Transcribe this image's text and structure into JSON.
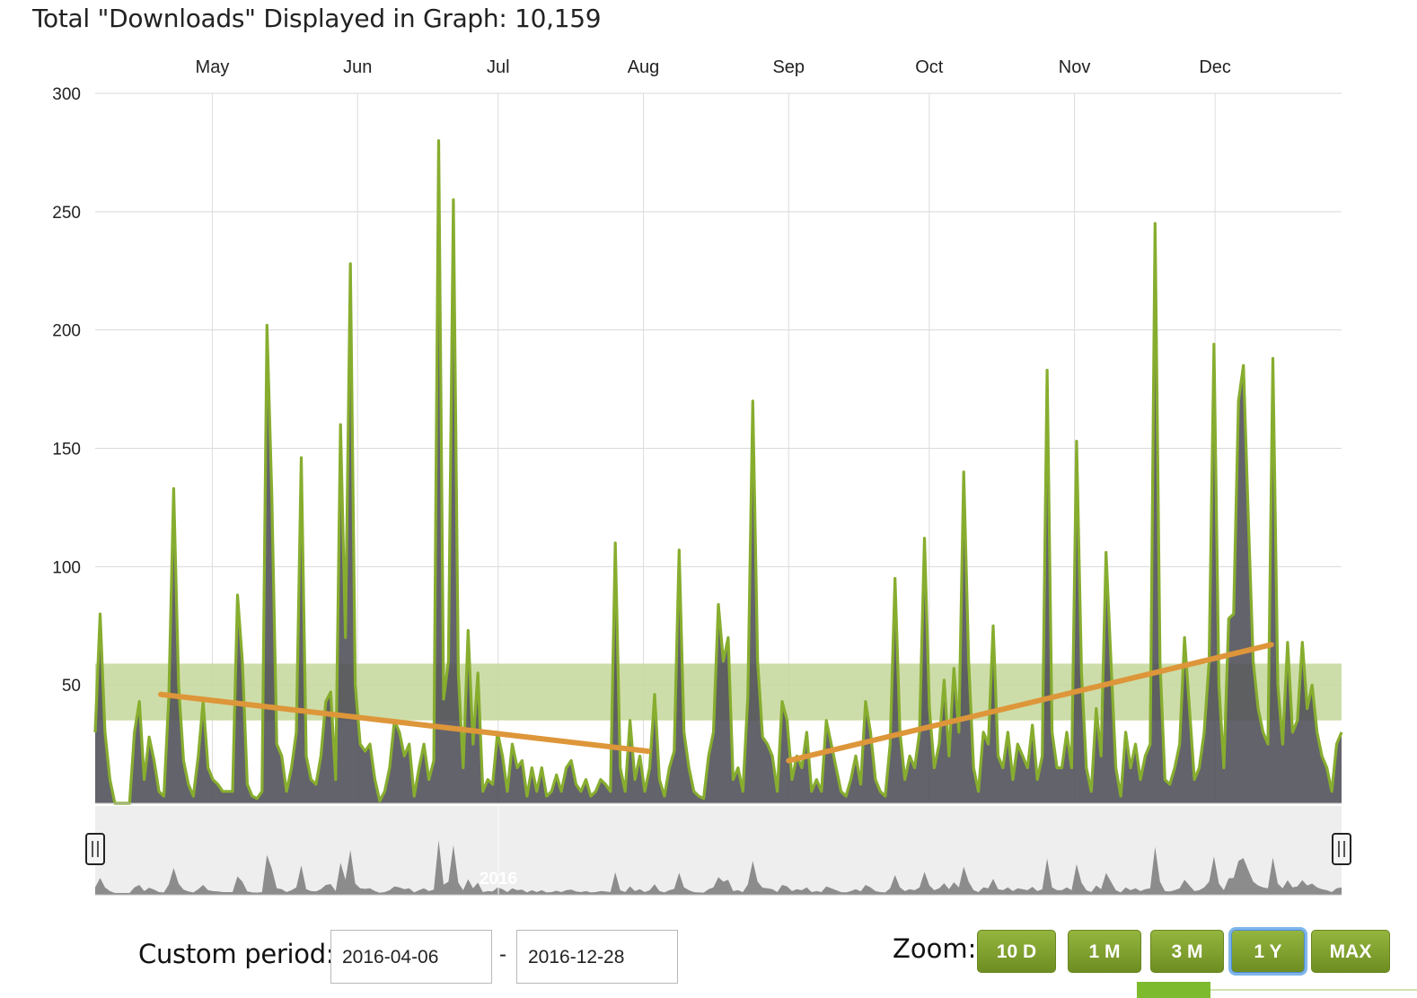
{
  "header": {
    "title": "Total \"Downloads\" Displayed in Graph: 10,159"
  },
  "colors": {
    "area_fill": "#4d4d57",
    "area_line": "#87ad2f",
    "avg_band": "#c4d79a",
    "trend_line": "#dd9639",
    "navigator_fill": "#8c8c8c"
  },
  "chart_data": {
    "type": "area",
    "title": "Total \"Downloads\" Displayed in Graph: 10,159",
    "x_range": [
      "2016-04-06",
      "2016-12-28"
    ],
    "month_labels": [
      "May",
      "Jun",
      "Jul",
      "Aug",
      "Sep",
      "Oct",
      "Nov",
      "Dec"
    ],
    "month_dates": [
      "2016-05-01",
      "2016-06-01",
      "2016-07-01",
      "2016-08-01",
      "2016-09-01",
      "2016-10-01",
      "2016-11-01",
      "2016-12-01"
    ],
    "y_ticks": [
      50,
      100,
      150,
      200,
      250,
      300
    ],
    "ylim": [
      0,
      300
    ],
    "grid": true,
    "average_band": [
      35,
      59
    ],
    "trend_lines": [
      {
        "from": {
          "x": "2016-04-20",
          "y": 46
        },
        "to": {
          "x": "2016-08-02",
          "y": 22
        }
      },
      {
        "from": {
          "x": "2016-09-01",
          "y": 18
        },
        "to": {
          "x": "2016-12-13",
          "y": 67
        }
      }
    ],
    "navigator_label": "2016",
    "series": [
      {
        "values": [
          [
            0,
            30
          ],
          [
            1,
            80
          ],
          [
            2,
            30
          ],
          [
            3,
            10
          ],
          [
            4,
            0
          ],
          [
            5,
            0
          ],
          [
            6,
            0
          ],
          [
            7,
            0
          ],
          [
            8,
            30
          ],
          [
            9,
            43
          ],
          [
            10,
            10
          ],
          [
            11,
            28
          ],
          [
            12,
            18
          ],
          [
            13,
            5
          ],
          [
            14,
            3
          ],
          [
            15,
            45
          ],
          [
            16,
            133
          ],
          [
            17,
            50
          ],
          [
            18,
            18
          ],
          [
            19,
            8
          ],
          [
            20,
            3
          ],
          [
            21,
            20
          ],
          [
            22,
            43
          ],
          [
            23,
            15
          ],
          [
            24,
            10
          ],
          [
            25,
            8
          ],
          [
            26,
            5
          ],
          [
            27,
            5
          ],
          [
            28,
            5
          ],
          [
            29,
            88
          ],
          [
            30,
            60
          ],
          [
            31,
            8
          ],
          [
            32,
            3
          ],
          [
            33,
            2
          ],
          [
            34,
            5
          ],
          [
            35,
            202
          ],
          [
            36,
            130
          ],
          [
            37,
            25
          ],
          [
            38,
            20
          ],
          [
            39,
            5
          ],
          [
            40,
            15
          ],
          [
            41,
            30
          ],
          [
            42,
            146
          ],
          [
            43,
            20
          ],
          [
            44,
            10
          ],
          [
            45,
            8
          ],
          [
            46,
            20
          ],
          [
            47,
            43
          ],
          [
            48,
            47
          ],
          [
            49,
            10
          ],
          [
            50,
            160
          ],
          [
            51,
            70
          ],
          [
            52,
            228
          ],
          [
            53,
            50
          ],
          [
            54,
            25
          ],
          [
            55,
            22
          ],
          [
            56,
            25
          ],
          [
            57,
            10
          ],
          [
            58,
            1
          ],
          [
            59,
            5
          ],
          [
            60,
            15
          ],
          [
            61,
            35
          ],
          [
            62,
            30
          ],
          [
            63,
            20
          ],
          [
            64,
            25
          ],
          [
            65,
            3
          ],
          [
            66,
            15
          ],
          [
            67,
            25
          ],
          [
            68,
            10
          ],
          [
            69,
            18
          ],
          [
            70,
            280
          ],
          [
            71,
            44
          ],
          [
            72,
            60
          ],
          [
            73,
            255
          ],
          [
            74,
            55
          ],
          [
            75,
            15
          ],
          [
            76,
            73
          ],
          [
            77,
            25
          ],
          [
            78,
            55
          ],
          [
            79,
            5
          ],
          [
            80,
            10
          ],
          [
            81,
            8
          ],
          [
            82,
            30
          ],
          [
            83,
            20
          ],
          [
            84,
            5
          ],
          [
            85,
            25
          ],
          [
            86,
            15
          ],
          [
            87,
            18
          ],
          [
            88,
            3
          ],
          [
            89,
            15
          ],
          [
            90,
            5
          ],
          [
            91,
            15
          ],
          [
            92,
            3
          ],
          [
            93,
            5
          ],
          [
            94,
            12
          ],
          [
            95,
            5
          ],
          [
            96,
            15
          ],
          [
            97,
            18
          ],
          [
            98,
            8
          ],
          [
            99,
            5
          ],
          [
            100,
            10
          ],
          [
            101,
            3
          ],
          [
            102,
            5
          ],
          [
            103,
            10
          ],
          [
            104,
            8
          ],
          [
            105,
            5
          ],
          [
            106,
            110
          ],
          [
            107,
            15
          ],
          [
            108,
            5
          ],
          [
            109,
            35
          ],
          [
            110,
            10
          ],
          [
            111,
            20
          ],
          [
            112,
            5
          ],
          [
            113,
            15
          ],
          [
            114,
            46
          ],
          [
            115,
            10
          ],
          [
            116,
            3
          ],
          [
            117,
            15
          ],
          [
            118,
            22
          ],
          [
            119,
            107
          ],
          [
            120,
            30
          ],
          [
            121,
            15
          ],
          [
            122,
            5
          ],
          [
            123,
            3
          ],
          [
            124,
            2
          ],
          [
            125,
            20
          ],
          [
            126,
            30
          ],
          [
            127,
            84
          ],
          [
            128,
            60
          ],
          [
            129,
            70
          ],
          [
            130,
            10
          ],
          [
            131,
            15
          ],
          [
            132,
            5
          ],
          [
            133,
            45
          ],
          [
            134,
            170
          ],
          [
            135,
            60
          ],
          [
            136,
            28
          ],
          [
            137,
            25
          ],
          [
            138,
            20
          ],
          [
            139,
            5
          ],
          [
            140,
            43
          ],
          [
            141,
            35
          ],
          [
            142,
            10
          ],
          [
            143,
            20
          ],
          [
            144,
            15
          ],
          [
            145,
            30
          ],
          [
            146,
            5
          ],
          [
            147,
            10
          ],
          [
            148,
            5
          ],
          [
            149,
            35
          ],
          [
            150,
            25
          ],
          [
            151,
            15
          ],
          [
            152,
            5
          ],
          [
            153,
            3
          ],
          [
            154,
            10
          ],
          [
            155,
            20
          ],
          [
            156,
            8
          ],
          [
            157,
            43
          ],
          [
            158,
            30
          ],
          [
            159,
            10
          ],
          [
            160,
            5
          ],
          [
            161,
            3
          ],
          [
            162,
            25
          ],
          [
            163,
            95
          ],
          [
            164,
            30
          ],
          [
            165,
            10
          ],
          [
            166,
            20
          ],
          [
            167,
            15
          ],
          [
            168,
            30
          ],
          [
            169,
            112
          ],
          [
            170,
            40
          ],
          [
            171,
            15
          ],
          [
            172,
            25
          ],
          [
            173,
            52
          ],
          [
            174,
            20
          ],
          [
            175,
            57
          ],
          [
            176,
            30
          ],
          [
            177,
            140
          ],
          [
            178,
            60
          ],
          [
            179,
            15
          ],
          [
            180,
            5
          ],
          [
            181,
            30
          ],
          [
            182,
            25
          ],
          [
            183,
            75
          ],
          [
            184,
            20
          ],
          [
            185,
            15
          ],
          [
            186,
            30
          ],
          [
            187,
            10
          ],
          [
            188,
            25
          ],
          [
            189,
            20
          ],
          [
            190,
            15
          ],
          [
            191,
            33
          ],
          [
            192,
            10
          ],
          [
            193,
            20
          ],
          [
            194,
            183
          ],
          [
            195,
            30
          ],
          [
            196,
            15
          ],
          [
            197,
            15
          ],
          [
            198,
            30
          ],
          [
            199,
            15
          ],
          [
            200,
            153
          ],
          [
            201,
            55
          ],
          [
            202,
            15
          ],
          [
            203,
            5
          ],
          [
            204,
            40
          ],
          [
            205,
            20
          ],
          [
            206,
            106
          ],
          [
            207,
            60
          ],
          [
            208,
            15
          ],
          [
            209,
            3
          ],
          [
            210,
            30
          ],
          [
            211,
            15
          ],
          [
            212,
            25
          ],
          [
            213,
            10
          ],
          [
            214,
            20
          ],
          [
            215,
            25
          ],
          [
            216,
            245
          ],
          [
            217,
            60
          ],
          [
            218,
            10
          ],
          [
            219,
            8
          ],
          [
            220,
            15
          ],
          [
            221,
            25
          ],
          [
            222,
            70
          ],
          [
            223,
            40
          ],
          [
            224,
            10
          ],
          [
            225,
            15
          ],
          [
            226,
            30
          ],
          [
            227,
            60
          ],
          [
            228,
            194
          ],
          [
            229,
            50
          ],
          [
            230,
            15
          ],
          [
            231,
            78
          ],
          [
            232,
            80
          ],
          [
            233,
            170
          ],
          [
            234,
            185
          ],
          [
            235,
            120
          ],
          [
            236,
            60
          ],
          [
            237,
            40
          ],
          [
            238,
            30
          ],
          [
            239,
            25
          ],
          [
            240,
            188
          ],
          [
            241,
            50
          ],
          [
            242,
            25
          ],
          [
            243,
            68
          ],
          [
            244,
            30
          ],
          [
            245,
            35
          ],
          [
            246,
            68
          ],
          [
            247,
            40
          ],
          [
            248,
            50
          ],
          [
            249,
            30
          ],
          [
            250,
            20
          ],
          [
            251,
            15
          ],
          [
            252,
            5
          ],
          [
            253,
            25
          ],
          [
            254,
            30
          ]
        ]
      }
    ]
  },
  "controls": {
    "custom_period_label": "Custom period:",
    "date_from": "2016-04-06",
    "date_separator": "-",
    "date_to": "2016-12-28",
    "zoom_label": "Zoom:",
    "zoom_buttons": [
      "10 D",
      "1 M",
      "3 M",
      "1 Y",
      "MAX"
    ],
    "active_zoom": "1 Y"
  }
}
